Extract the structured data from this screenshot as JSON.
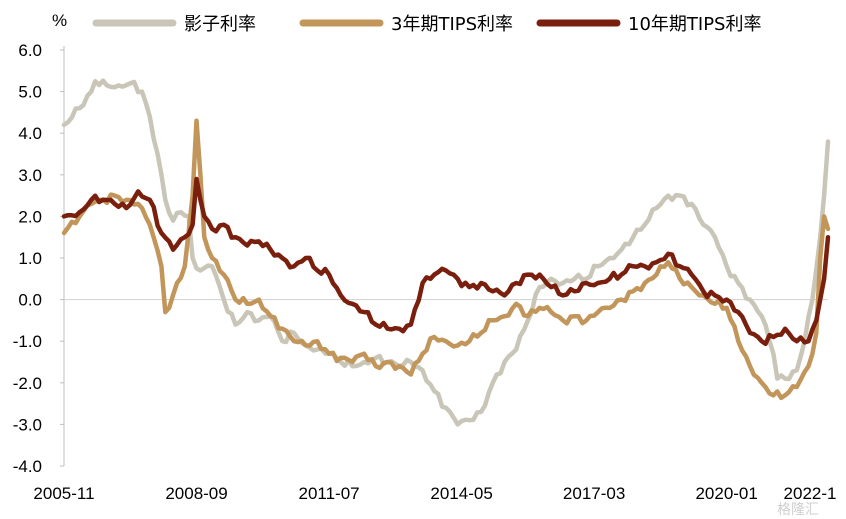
{
  "chart_data": {
    "type": "line",
    "y_unit": "%",
    "ylim": [
      -4.0,
      6.0
    ],
    "y_ticks": [
      "6.0",
      "5.0",
      "4.0",
      "3.0",
      "2.0",
      "1.0",
      "0.0",
      "-1.0",
      "-2.0",
      "-3.0",
      "-4.0"
    ],
    "x_range": [
      "2005-11",
      "2022-03"
    ],
    "x_ticks": [
      "2005-11",
      "2008-09",
      "2011-07",
      "2014-05",
      "2017-03",
      "2020-01",
      "2022-1"
    ],
    "grid": false,
    "legend_position": "top",
    "series": [
      {
        "name": "影子利率",
        "color": "#c9c6b8",
        "points": [
          [
            "2005-11",
            4.2
          ],
          [
            "2006-03",
            4.6
          ],
          [
            "2006-06",
            5.0
          ],
          [
            "2006-07",
            5.25
          ],
          [
            "2006-10",
            5.15
          ],
          [
            "2007-01",
            5.15
          ],
          [
            "2007-04",
            5.2
          ],
          [
            "2007-07",
            5.0
          ],
          [
            "2007-09",
            4.4
          ],
          [
            "2007-11",
            3.5
          ],
          [
            "2008-01",
            2.4
          ],
          [
            "2008-03",
            1.9
          ],
          [
            "2008-05",
            2.1
          ],
          [
            "2008-07",
            2.0
          ],
          [
            "2008-08",
            1.0
          ],
          [
            "2008-10",
            0.7
          ],
          [
            "2009-01",
            0.8
          ],
          [
            "2009-04",
            0.0
          ],
          [
            "2009-07",
            -0.6
          ],
          [
            "2009-10",
            -0.3
          ],
          [
            "2010-01",
            -0.5
          ],
          [
            "2010-04",
            -0.4
          ],
          [
            "2010-07",
            -1.0
          ],
          [
            "2010-10",
            -0.8
          ],
          [
            "2011-01",
            -1.1
          ],
          [
            "2011-04",
            -1.2
          ],
          [
            "2011-07",
            -1.3
          ],
          [
            "2011-10",
            -1.5
          ],
          [
            "2012-01",
            -1.6
          ],
          [
            "2012-04",
            -1.5
          ],
          [
            "2012-07",
            -1.4
          ],
          [
            "2012-10",
            -1.5
          ],
          [
            "2013-01",
            -1.6
          ],
          [
            "2013-04",
            -1.5
          ],
          [
            "2013-07",
            -1.7
          ],
          [
            "2013-10",
            -2.2
          ],
          [
            "2014-01",
            -2.6
          ],
          [
            "2014-04",
            -3.0
          ],
          [
            "2014-07",
            -2.9
          ],
          [
            "2014-10",
            -2.7
          ],
          [
            "2015-01",
            -2.0
          ],
          [
            "2015-04",
            -1.5
          ],
          [
            "2015-07",
            -1.2
          ],
          [
            "2015-10",
            -0.5
          ],
          [
            "2016-01",
            0.3
          ],
          [
            "2016-04",
            0.5
          ],
          [
            "2016-07",
            0.4
          ],
          [
            "2016-10",
            0.5
          ],
          [
            "2017-01",
            0.5
          ],
          [
            "2017-04",
            0.8
          ],
          [
            "2017-07",
            1.0
          ],
          [
            "2017-10",
            1.2
          ],
          [
            "2018-01",
            1.5
          ],
          [
            "2018-04",
            1.8
          ],
          [
            "2018-07",
            2.2
          ],
          [
            "2018-10",
            2.5
          ],
          [
            "2019-01",
            2.5
          ],
          [
            "2019-04",
            2.3
          ],
          [
            "2019-07",
            1.8
          ],
          [
            "2019-10",
            1.5
          ],
          [
            "2020-01",
            0.8
          ],
          [
            "2020-04",
            0.4
          ],
          [
            "2020-07",
            0.0
          ],
          [
            "2020-10",
            -0.4
          ],
          [
            "2021-01",
            -1.3
          ],
          [
            "2021-02",
            -1.9
          ],
          [
            "2021-04",
            -1.9
          ],
          [
            "2021-07",
            -1.7
          ],
          [
            "2021-09",
            -1.0
          ],
          [
            "2021-11",
            0.0
          ],
          [
            "2022-01",
            1.5
          ],
          [
            "2022-02",
            2.5
          ],
          [
            "2022-03",
            3.8
          ]
        ]
      },
      {
        "name": "3年期TIPS利率",
        "color": "#c2965a",
        "points": [
          [
            "2005-11",
            1.6
          ],
          [
            "2006-03",
            2.0
          ],
          [
            "2006-06",
            2.3
          ],
          [
            "2006-09",
            2.4
          ],
          [
            "2006-12",
            2.5
          ],
          [
            "2007-03",
            2.4
          ],
          [
            "2007-06",
            2.3
          ],
          [
            "2007-09",
            1.8
          ],
          [
            "2007-12",
            0.8
          ],
          [
            "2008-01",
            -0.3
          ],
          [
            "2008-02",
            -0.2
          ],
          [
            "2008-04",
            0.4
          ],
          [
            "2008-06",
            0.8
          ],
          [
            "2008-08",
            2.5
          ],
          [
            "2008-09",
            4.3
          ],
          [
            "2008-10",
            3.0
          ],
          [
            "2008-11",
            1.5
          ],
          [
            "2009-01",
            1.0
          ],
          [
            "2009-04",
            0.6
          ],
          [
            "2009-07",
            0.0
          ],
          [
            "2009-10",
            -0.1
          ],
          [
            "2010-01",
            0.0
          ],
          [
            "2010-04",
            -0.4
          ],
          [
            "2010-07",
            -0.7
          ],
          [
            "2010-10",
            -1.0
          ],
          [
            "2011-01",
            -1.1
          ],
          [
            "2011-04",
            -1.0
          ],
          [
            "2011-07",
            -1.3
          ],
          [
            "2011-10",
            -1.4
          ],
          [
            "2012-01",
            -1.5
          ],
          [
            "2012-04",
            -1.3
          ],
          [
            "2012-07",
            -1.6
          ],
          [
            "2012-10",
            -1.5
          ],
          [
            "2013-01",
            -1.6
          ],
          [
            "2013-04",
            -1.8
          ],
          [
            "2013-07",
            -1.3
          ],
          [
            "2013-10",
            -0.9
          ],
          [
            "2014-01",
            -1.0
          ],
          [
            "2014-04",
            -1.1
          ],
          [
            "2014-07",
            -1.0
          ],
          [
            "2014-10",
            -0.8
          ],
          [
            "2015-01",
            -0.5
          ],
          [
            "2015-04",
            -0.4
          ],
          [
            "2015-07",
            -0.1
          ],
          [
            "2015-10",
            -0.4
          ],
          [
            "2016-01",
            -0.2
          ],
          [
            "2016-04",
            -0.3
          ],
          [
            "2016-07",
            -0.5
          ],
          [
            "2016-10",
            -0.4
          ],
          [
            "2017-01",
            -0.5
          ],
          [
            "2017-04",
            -0.3
          ],
          [
            "2017-07",
            -0.2
          ],
          [
            "2017-10",
            0.0
          ],
          [
            "2018-01",
            0.2
          ],
          [
            "2018-04",
            0.4
          ],
          [
            "2018-07",
            0.6
          ],
          [
            "2018-10",
            0.9
          ],
          [
            "2019-01",
            0.5
          ],
          [
            "2019-04",
            0.3
          ],
          [
            "2019-07",
            0.1
          ],
          [
            "2019-10",
            -0.1
          ],
          [
            "2020-01",
            -0.2
          ],
          [
            "2020-04",
            -1.0
          ],
          [
            "2020-07",
            -1.6
          ],
          [
            "2020-10",
            -2.0
          ],
          [
            "2021-01",
            -2.3
          ],
          [
            "2021-04",
            -2.3
          ],
          [
            "2021-07",
            -2.1
          ],
          [
            "2021-10",
            -1.6
          ],
          [
            "2021-12",
            -0.8
          ],
          [
            "2022-01",
            1.0
          ],
          [
            "2022-02",
            2.0
          ],
          [
            "2022-03",
            1.7
          ]
        ]
      },
      {
        "name": "10年期TIPS利率",
        "color": "#7a1f0d",
        "points": [
          [
            "2005-11",
            2.0
          ],
          [
            "2006-03",
            2.1
          ],
          [
            "2006-06",
            2.4
          ],
          [
            "2006-09",
            2.4
          ],
          [
            "2006-12",
            2.3
          ],
          [
            "2007-03",
            2.2
          ],
          [
            "2007-06",
            2.6
          ],
          [
            "2007-09",
            2.4
          ],
          [
            "2007-12",
            1.6
          ],
          [
            "2008-03",
            1.2
          ],
          [
            "2008-06",
            1.5
          ],
          [
            "2008-08",
            1.8
          ],
          [
            "2008-09",
            2.9
          ],
          [
            "2008-11",
            2.0
          ],
          [
            "2009-01",
            1.7
          ],
          [
            "2009-04",
            1.8
          ],
          [
            "2009-07",
            1.5
          ],
          [
            "2009-10",
            1.3
          ],
          [
            "2010-01",
            1.4
          ],
          [
            "2010-04",
            1.2
          ],
          [
            "2010-07",
            1.0
          ],
          [
            "2010-10",
            0.8
          ],
          [
            "2011-01",
            1.0
          ],
          [
            "2011-04",
            0.7
          ],
          [
            "2011-07",
            0.6
          ],
          [
            "2011-10",
            0.1
          ],
          [
            "2012-01",
            -0.1
          ],
          [
            "2012-04",
            -0.3
          ],
          [
            "2012-07",
            -0.6
          ],
          [
            "2012-10",
            -0.7
          ],
          [
            "2013-01",
            -0.7
          ],
          [
            "2013-04",
            -0.6
          ],
          [
            "2013-07",
            0.4
          ],
          [
            "2013-10",
            0.6
          ],
          [
            "2014-01",
            0.7
          ],
          [
            "2014-04",
            0.5
          ],
          [
            "2014-07",
            0.3
          ],
          [
            "2014-10",
            0.4
          ],
          [
            "2015-01",
            0.2
          ],
          [
            "2015-04",
            0.1
          ],
          [
            "2015-07",
            0.4
          ],
          [
            "2015-10",
            0.6
          ],
          [
            "2016-01",
            0.6
          ],
          [
            "2016-04",
            0.3
          ],
          [
            "2016-07",
            0.1
          ],
          [
            "2016-10",
            0.2
          ],
          [
            "2017-01",
            0.4
          ],
          [
            "2017-04",
            0.4
          ],
          [
            "2017-07",
            0.5
          ],
          [
            "2017-10",
            0.6
          ],
          [
            "2018-01",
            0.8
          ],
          [
            "2018-04",
            0.8
          ],
          [
            "2018-07",
            0.9
          ],
          [
            "2018-10",
            1.1
          ],
          [
            "2019-01",
            0.8
          ],
          [
            "2019-04",
            0.6
          ],
          [
            "2019-07",
            0.2
          ],
          [
            "2019-10",
            0.1
          ],
          [
            "2020-01",
            0.0
          ],
          [
            "2020-04",
            -0.3
          ],
          [
            "2020-07",
            -0.8
          ],
          [
            "2020-10",
            -1.0
          ],
          [
            "2021-01",
            -0.9
          ],
          [
            "2021-04",
            -0.7
          ],
          [
            "2021-07",
            -1.0
          ],
          [
            "2021-10",
            -1.0
          ],
          [
            "2021-12",
            -0.5
          ],
          [
            "2022-01",
            0.0
          ],
          [
            "2022-02",
            0.5
          ],
          [
            "2022-03",
            1.5
          ]
        ]
      }
    ]
  },
  "watermark": "格隆汇"
}
